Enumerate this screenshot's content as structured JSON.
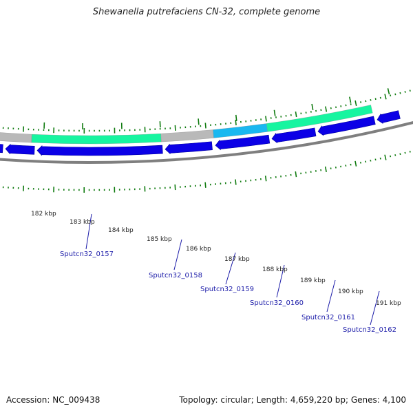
{
  "title": "Shewanella putrefaciens CN-32, complete genome",
  "accession": "Accession: NC_009438",
  "summary": "Topology: circular; Length: 4,659,220 bp; Genes: 4,100",
  "colors": {
    "backbone": "#7f7f7f",
    "cds_arrow": "#0b00e6",
    "cds_arrow_edge": "#0000a0",
    "feature_green": "#17f5a0",
    "feature_gray": "#b9b9b9",
    "feature_cyan": "#19b8f0",
    "gc_dots": "#0e7a0e",
    "gene_label": "#1a1aa8"
  },
  "tick_labels": [
    "182 kbp",
    "183 kbp",
    "184 kbp",
    "185 kbp",
    "186 kbp",
    "187 kbp",
    "188 kbp",
    "189 kbp",
    "190 kbp",
    "191 kbp"
  ],
  "gene_labels": [
    "Sputcn32_0157",
    "Sputcn32_0158",
    "Sputcn32_0159",
    "Sputcn32_0160",
    "Sputcn32_0161",
    "Sputcn32_0162"
  ]
}
